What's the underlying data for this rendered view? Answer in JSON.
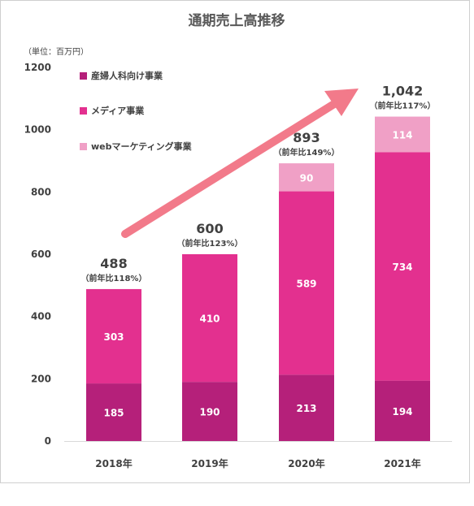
{
  "chart_data": {
    "type": "bar",
    "stacked": true,
    "title": "通期売上高推移",
    "unit_label": "（単位：百万円）",
    "categories": [
      "2018年",
      "2019年",
      "2020年",
      "2021年"
    ],
    "series": [
      {
        "name": "産婦人科向け事業",
        "color": "#b5207a",
        "values": [
          185,
          190,
          213,
          194
        ]
      },
      {
        "name": "メディア事業",
        "color": "#e3308f",
        "values": [
          303,
          410,
          589,
          734
        ]
      },
      {
        "name": "webマーケティング事業",
        "color": "#f0a0c6",
        "values": [
          null,
          null,
          90,
          114
        ]
      }
    ],
    "totals": [
      "488",
      "600",
      "893",
      "1,042"
    ],
    "growth_labels": [
      "（前年比118%）",
      "（前年比123%）",
      "（前年比149%）",
      "（前年比117%）"
    ],
    "ylim": [
      0,
      1200
    ],
    "yticks": [
      0,
      200,
      400,
      600,
      800,
      1000,
      1200
    ],
    "grid": false,
    "legend_position": "top-left",
    "trend_arrow": true,
    "arrow_color": "#f27a8a"
  }
}
